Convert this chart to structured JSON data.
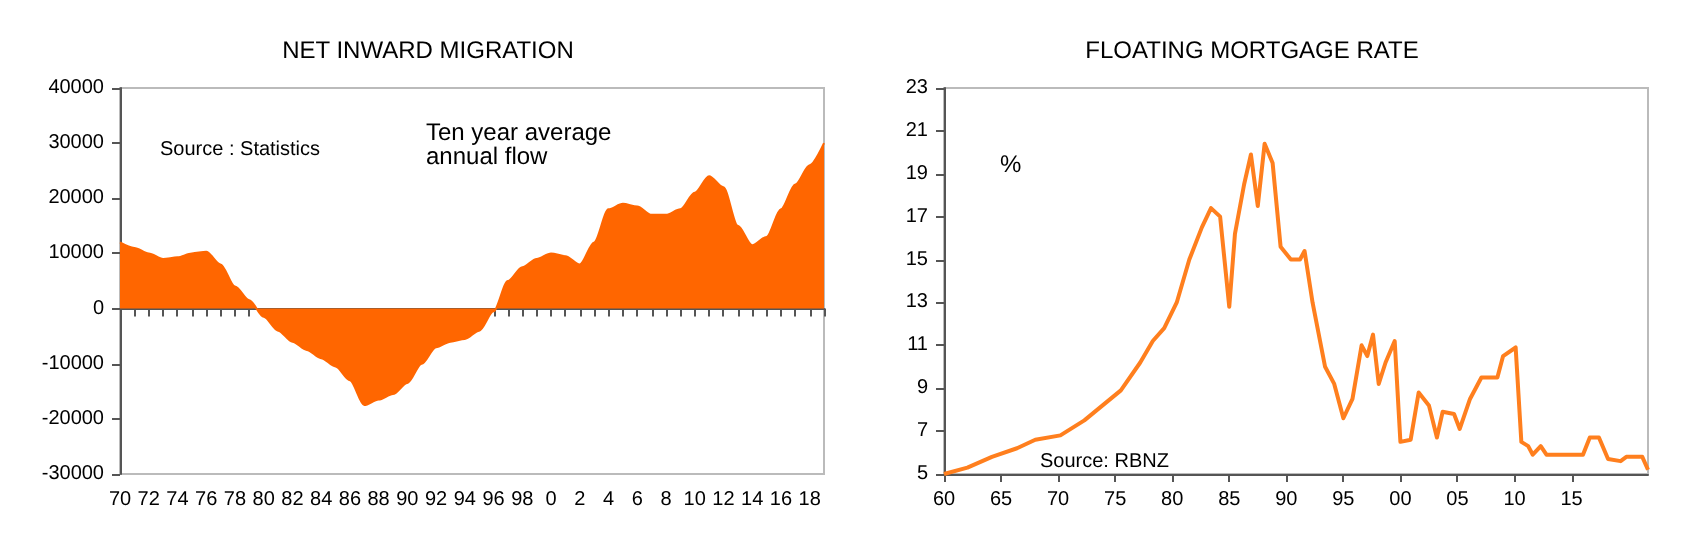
{
  "chart_data": [
    {
      "type": "area",
      "title": "NET INWARD MIGRATION",
      "annotations": [
        "Source : Statistics",
        "Ten year average annual flow"
      ],
      "categories": [
        "70",
        null,
        "72",
        null,
        "74",
        null,
        "76",
        null,
        "78",
        null,
        "80",
        null,
        "82",
        null,
        "84",
        null,
        "86",
        null,
        "88",
        null,
        "90",
        null,
        "92",
        null,
        "94",
        null,
        "96",
        null,
        "98",
        null,
        "0",
        null,
        "2",
        null,
        "4",
        null,
        "6",
        null,
        "8",
        null,
        "10",
        null,
        "12",
        null,
        "14",
        null,
        "16",
        null,
        "18",
        null
      ],
      "series": [
        {
          "color": "#ff6600",
          "values": [
            12000,
            11000,
            10000,
            9000,
            9300,
            10000,
            10300,
            8000,
            4000,
            1500,
            -1500,
            -4000,
            -6000,
            -7500,
            -9000,
            -10500,
            -13000,
            -17500,
            -16500,
            -15500,
            -13500,
            -10000,
            -7000,
            -6000,
            -5500,
            -4000,
            -500,
            5000,
            7500,
            9000,
            10000,
            9500,
            8000,
            12000,
            18000,
            19000,
            18500,
            17000,
            17000,
            18000,
            21000,
            24000,
            22000,
            15000,
            11500,
            13000,
            18000,
            22500,
            26000,
            30000
          ]
        }
      ],
      "ylim": [
        -30000,
        40000
      ],
      "yticks": [
        -30000,
        -20000,
        -10000,
        0,
        10000,
        20000,
        30000,
        40000
      ]
    },
    {
      "type": "line",
      "title": "FLOATING MORTGAGE RATE",
      "annotations": [
        "%",
        "Source: RBNZ"
      ],
      "x": [
        1960,
        1962.05,
        1964.2,
        1966.4,
        1968,
        1970.2,
        1972.3,
        1973.9,
        1975.5,
        1977.2,
        1978.3,
        1979.3,
        1980.4,
        1981.5,
        1982.6,
        1983.4,
        1984.2,
        1985,
        1985.5,
        1986.3,
        1986.9,
        1987.5,
        1988.1,
        1988.8,
        1989.5,
        1990.4,
        1991.2,
        1991.6,
        1992.3,
        1993.4,
        1994.2,
        1995,
        1995.8,
        1996.6,
        1997.1,
        1997.6,
        1998.1,
        1998.7,
        1999.5,
        2000,
        2000.9,
        2001.6,
        2002.5,
        2003.2,
        2003.7,
        2004.7,
        2005.2,
        2006.1,
        2007.1,
        2008.5,
        2009,
        2010.1,
        2010.6,
        2011.2,
        2011.6,
        2012.3,
        2012.8,
        2016,
        2016.6,
        2017.4,
        2018.2,
        2019.3,
        2019.8,
        2021.2,
        2021.7
      ],
      "series": [
        {
          "color": "#ff7f1e",
          "values": [
            5,
            5.3,
            5.8,
            6.2,
            6.6,
            6.8,
            7.5,
            8.2,
            8.9,
            10.2,
            11.2,
            11.8,
            13,
            15,
            16.5,
            17.4,
            17,
            12.8,
            16.2,
            18.5,
            19.9,
            17.5,
            20.4,
            19.5,
            15.6,
            15,
            15,
            15.4,
            13,
            10,
            9.2,
            7.6,
            8.5,
            11,
            10.5,
            11.5,
            9.2,
            10.2,
            11.2,
            6.5,
            6.6,
            8.8,
            8.2,
            6.7,
            7.9,
            7.8,
            7.1,
            8.5,
            9.5,
            9.5,
            10.5,
            10.9,
            6.5,
            6.3,
            5.9,
            6.3,
            5.9,
            5.9,
            6.7,
            6.7,
            5.7,
            5.6,
            5.8,
            5.8,
            5.2
          ]
        }
      ],
      "xlim": [
        1960,
        2021.7
      ],
      "xticks": [
        {
          "value": 1960,
          "label": "60"
        },
        {
          "value": 1965,
          "label": "65"
        },
        {
          "value": 1970,
          "label": "70"
        },
        {
          "value": 1975,
          "label": "75"
        },
        {
          "value": 1980,
          "label": "80"
        },
        {
          "value": 1985,
          "label": "85"
        },
        {
          "value": 1990,
          "label": "90"
        },
        {
          "value": 1995,
          "label": "95"
        },
        {
          "value": 2000,
          "label": "00"
        },
        {
          "value": 2005,
          "label": "05"
        },
        {
          "value": 2010,
          "label": "10"
        },
        {
          "value": 2015,
          "label": "15"
        }
      ],
      "ylim": [
        5,
        23
      ],
      "yticks": [
        5,
        7,
        9,
        11,
        13,
        15,
        17,
        19,
        21,
        23
      ]
    }
  ]
}
